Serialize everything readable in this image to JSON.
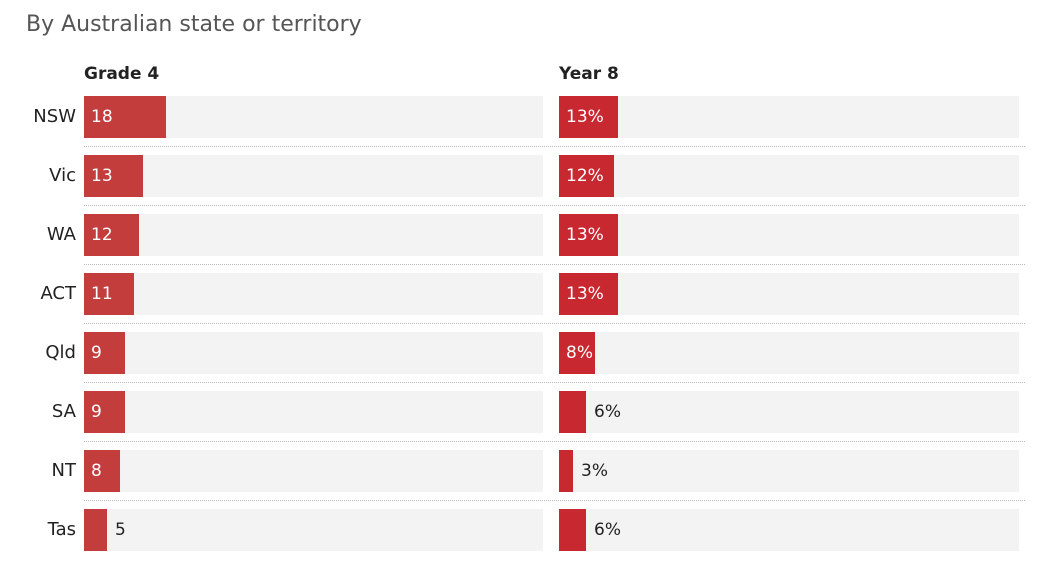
{
  "subtitle": "By Australian state or territory",
  "colors": {
    "bar_grade4": "#c33d3d",
    "bar_year8": "#c8282f",
    "track": "#f3f3f3"
  },
  "chart_data": [
    {
      "type": "bar",
      "title": "Grade 4",
      "orientation": "horizontal",
      "categories": [
        "NSW",
        "Vic",
        "WA",
        "ACT",
        "Qld",
        "SA",
        "NT",
        "Tas"
      ],
      "values": [
        18,
        13,
        12,
        11,
        9,
        9,
        8,
        5
      ],
      "value_labels": [
        "18",
        "13",
        "12",
        "11",
        "9",
        "9",
        "8",
        "5"
      ],
      "xlim": [
        0,
        100
      ]
    },
    {
      "type": "bar",
      "title": "Year 8",
      "orientation": "horizontal",
      "categories": [
        "NSW",
        "Vic",
        "WA",
        "ACT",
        "Qld",
        "SA",
        "NT",
        "Tas"
      ],
      "values": [
        13,
        12,
        13,
        13,
        8,
        6,
        3,
        6
      ],
      "value_labels": [
        "13%",
        "12%",
        "13%",
        "13%",
        "8%",
        "6%",
        "3%",
        "6%"
      ],
      "xlim": [
        0,
        100
      ]
    }
  ]
}
